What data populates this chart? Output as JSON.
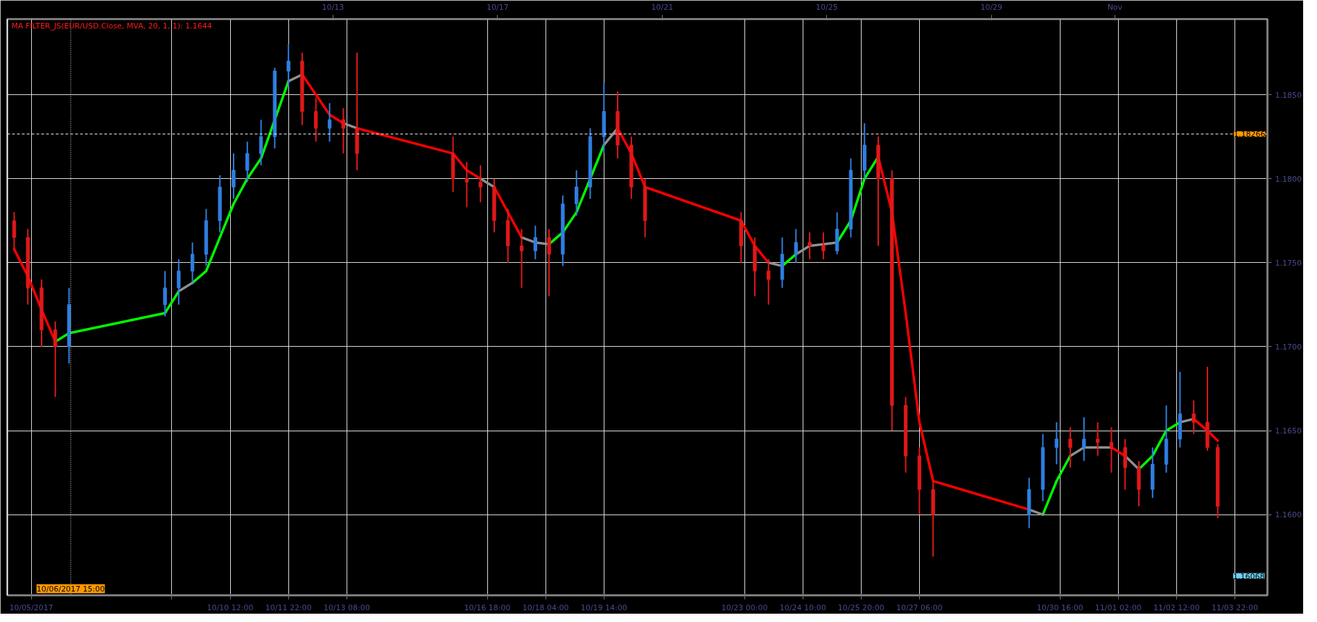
{
  "chart_data": {
    "type": "candlestick",
    "annotations": [
      "MA FILTER_JS(EUR/USD.Close, MVA, 20, 1, 1): 1.1644",
      "1.16068"
    ],
    "x": [
      "2017-10-05T06:00",
      "2017-10-05T14:00",
      "2017-10-05T22:00",
      "2017-10-06T06:00",
      "2017-10-06T14:00",
      "2017-10-08T22:00",
      "2017-10-09T06:00",
      "2017-10-09T14:00",
      "2017-10-09T22:00",
      "2017-10-10T06:00",
      "2017-10-10T14:00",
      "2017-10-10T22:00",
      "2017-10-11T06:00",
      "2017-10-11T14:00",
      "2017-10-11T22:00",
      "2017-10-12T06:00",
      "2017-10-12T14:00",
      "2017-10-12T22:00",
      "2017-10-13T06:00",
      "2017-10-13T14:00",
      "2017-10-15T22:00",
      "2017-10-16T06:00",
      "2017-10-16T14:00",
      "2017-10-16T22:00",
      "2017-10-17T06:00",
      "2017-10-17T14:00",
      "2017-10-17T22:00",
      "2017-10-18T06:00",
      "2017-10-18T14:00",
      "2017-10-18T22:00",
      "2017-10-19T06:00",
      "2017-10-19T14:00",
      "2017-10-19T22:00",
      "2017-10-20T06:00",
      "2017-10-20T14:00",
      "2017-10-22T22:00",
      "2017-10-23T06:00",
      "2017-10-23T14:00",
      "2017-10-23T22:00",
      "2017-10-24T06:00",
      "2017-10-24T14:00",
      "2017-10-24T22:00",
      "2017-10-25T06:00",
      "2017-10-25T14:00",
      "2017-10-25T22:00",
      "2017-10-26T06:00",
      "2017-10-26T14:00",
      "2017-10-26T22:00",
      "2017-10-27T06:00",
      "2017-10-27T14:00",
      "2017-10-29T22:00",
      "2017-10-30T06:00",
      "2017-10-30T14:00",
      "2017-10-30T22:00",
      "2017-10-31T06:00",
      "2017-10-31T14:00",
      "2017-10-31T22:00",
      "2017-11-01T06:00",
      "2017-11-01T14:00",
      "2017-11-01T22:00",
      "2017-11-02T06:00",
      "2017-11-02T14:00",
      "2017-11-02T22:00",
      "2017-11-03T06:00",
      "2017-11-03T12:00"
    ],
    "ohlc": [
      [
        1.1775,
        1.178,
        1.1758,
        1.1765
      ],
      [
        1.1765,
        1.177,
        1.1725,
        1.1735
      ],
      [
        1.1735,
        1.174,
        1.17,
        1.171
      ],
      [
        1.171,
        1.1715,
        1.167,
        1.17
      ],
      [
        1.17,
        1.1735,
        1.169,
        1.1725
      ],
      [
        1.1725,
        1.1745,
        1.1718,
        1.1735
      ],
      [
        1.1735,
        1.1752,
        1.1725,
        1.1745
      ],
      [
        1.1745,
        1.1762,
        1.1738,
        1.1755
      ],
      [
        1.1755,
        1.1782,
        1.1748,
        1.1775
      ],
      [
        1.1775,
        1.1802,
        1.1768,
        1.1795
      ],
      [
        1.1795,
        1.1815,
        1.1788,
        1.1805
      ],
      [
        1.1805,
        1.1822,
        1.1798,
        1.1815
      ],
      [
        1.1815,
        1.1835,
        1.1808,
        1.1825
      ],
      [
        1.1825,
        1.1866,
        1.1818,
        1.1864
      ],
      [
        1.1864,
        1.188,
        1.1855,
        1.187
      ],
      [
        1.187,
        1.1875,
        1.1832,
        1.184
      ],
      [
        1.184,
        1.1848,
        1.1822,
        1.183
      ],
      [
        1.183,
        1.1845,
        1.1822,
        1.1835
      ],
      [
        1.1835,
        1.1842,
        1.1815,
        1.183
      ],
      [
        1.183,
        1.1875,
        1.1805,
        1.1815
      ],
      [
        1.1815,
        1.1825,
        1.1792,
        1.18
      ],
      [
        1.18,
        1.181,
        1.1783,
        1.1798
      ],
      [
        1.1798,
        1.1808,
        1.1786,
        1.1795
      ],
      [
        1.1795,
        1.18,
        1.1768,
        1.1775
      ],
      [
        1.1775,
        1.1782,
        1.175,
        1.176
      ],
      [
        1.176,
        1.177,
        1.1735,
        1.1757
      ],
      [
        1.1757,
        1.1772,
        1.1752,
        1.1765
      ],
      [
        1.1765,
        1.177,
        1.173,
        1.1755
      ],
      [
        1.1755,
        1.179,
        1.1748,
        1.1785
      ],
      [
        1.1785,
        1.1805,
        1.1778,
        1.1795
      ],
      [
        1.1795,
        1.183,
        1.1788,
        1.1825
      ],
      [
        1.1825,
        1.1857,
        1.1815,
        1.184
      ],
      [
        1.184,
        1.1852,
        1.1812,
        1.182
      ],
      [
        1.182,
        1.1825,
        1.1788,
        1.1795
      ],
      [
        1.1795,
        1.18,
        1.1765,
        1.1775
      ],
      [
        1.1775,
        1.178,
        1.175,
        1.176
      ],
      [
        1.176,
        1.1765,
        1.173,
        1.1745
      ],
      [
        1.1745,
        1.1752,
        1.1725,
        1.174
      ],
      [
        1.174,
        1.1765,
        1.1735,
        1.1755
      ],
      [
        1.1755,
        1.177,
        1.175,
        1.1762
      ],
      [
        1.1762,
        1.1768,
        1.1752,
        1.176
      ],
      [
        1.176,
        1.1768,
        1.1752,
        1.1757
      ],
      [
        1.1757,
        1.178,
        1.1755,
        1.177
      ],
      [
        1.177,
        1.1812,
        1.1765,
        1.1805
      ],
      [
        1.1805,
        1.1833,
        1.18,
        1.182
      ],
      [
        1.182,
        1.1825,
        1.176,
        1.18
      ],
      [
        1.18,
        1.1805,
        1.165,
        1.1665
      ],
      [
        1.1665,
        1.167,
        1.1625,
        1.1635
      ],
      [
        1.1635,
        1.164,
        1.16,
        1.1615
      ],
      [
        1.1615,
        1.162,
        1.1575,
        1.16
      ],
      [
        1.16,
        1.1622,
        1.1592,
        1.1615
      ],
      [
        1.1615,
        1.1648,
        1.1608,
        1.164
      ],
      [
        1.164,
        1.1655,
        1.163,
        1.1645
      ],
      [
        1.1645,
        1.1652,
        1.1628,
        1.164
      ],
      [
        1.164,
        1.1658,
        1.1632,
        1.1645
      ],
      [
        1.1645,
        1.1655,
        1.1635,
        1.1643
      ],
      [
        1.1643,
        1.1652,
        1.1625,
        1.164
      ],
      [
        1.164,
        1.1645,
        1.1615,
        1.1628
      ],
      [
        1.1628,
        1.1632,
        1.1605,
        1.1615
      ],
      [
        1.1615,
        1.164,
        1.161,
        1.163
      ],
      [
        1.163,
        1.1665,
        1.1625,
        1.1645
      ],
      [
        1.1645,
        1.1685,
        1.164,
        1.166
      ],
      [
        1.166,
        1.1668,
        1.1648,
        1.1655
      ],
      [
        1.1655,
        1.1688,
        1.1638,
        1.164
      ],
      [
        1.164,
        1.1642,
        1.1598,
        1.1605
      ]
    ],
    "series": [
      {
        "type": "line",
        "color": "#ff0000",
        "x": [
          "2017-10-05T06:00",
          "2017-10-05T14:00",
          "2017-10-05T22:00",
          "2017-10-06T06:00",
          null,
          "2017-10-12T06:00",
          "2017-10-12T14:00",
          "2017-10-12T22:00",
          "2017-10-13T06:00",
          null,
          "2017-10-13T14:00",
          "2017-10-15T22:00",
          "2017-10-16T06:00",
          "2017-10-16T14:00",
          null,
          "2017-10-16T22:00",
          "2017-10-17T06:00",
          "2017-10-17T14:00",
          null,
          "2017-10-19T22:00",
          "2017-10-20T06:00",
          "2017-10-20T14:00",
          "2017-10-22T22:00",
          "2017-10-23T06:00",
          "2017-10-23T14:00",
          null,
          "2017-10-26T06:00",
          "2017-10-26T14:00",
          "2017-10-26T22:00",
          "2017-10-27T06:00",
          "2017-10-27T14:00",
          "2017-10-29T22:00",
          null,
          "2017-10-31T22:00",
          "2017-11-01T06:00",
          null,
          "2017-11-02T22:00",
          "2017-11-03T06:00",
          "2017-11-03T12:00"
        ],
        "values": [
          1.1758,
          1.1742,
          1.1722,
          1.1703,
          null,
          1.1862,
          1.185,
          1.1838,
          1.1833,
          null,
          1.183,
          1.1815,
          1.1805,
          1.18,
          null,
          1.1795,
          1.178,
          1.1765,
          null,
          1.183,
          1.1815,
          1.1795,
          1.1775,
          1.176,
          1.175,
          null,
          1.1813,
          1.178,
          1.172,
          1.1655,
          1.162,
          1.1603,
          null,
          1.164,
          1.1635,
          null,
          1.1657,
          1.165,
          1.1644
        ]
      },
      {
        "type": "line",
        "color": "#00ff00",
        "x": [
          "2017-10-06T06:00",
          "2017-10-06T14:00",
          "2017-10-08T22:00",
          "2017-10-09T06:00",
          null,
          "2017-10-09T14:00",
          "2017-10-09T22:00",
          "2017-10-10T06:00",
          "2017-10-10T14:00",
          "2017-10-10T22:00",
          "2017-10-11T06:00",
          "2017-10-11T14:00",
          "2017-10-11T22:00",
          null,
          "2017-10-18T06:00",
          "2017-10-18T14:00",
          "2017-10-18T22:00",
          "2017-10-19T06:00",
          "2017-10-19T14:00",
          null,
          "2017-10-23T22:00",
          "2017-10-24T06:00",
          null,
          "2017-10-25T06:00",
          "2017-10-25T14:00",
          "2017-10-25T22:00",
          "2017-10-26T06:00",
          null,
          "2017-10-30T06:00",
          "2017-10-30T14:00",
          "2017-10-30T22:00",
          null,
          "2017-11-01T14:00",
          "2017-11-01T22:00",
          "2017-11-02T06:00",
          "2017-11-02T14:00"
        ],
        "values": [
          1.1703,
          1.1708,
          1.172,
          1.1733,
          null,
          1.1738,
          1.1745,
          1.1765,
          1.1785,
          1.18,
          1.1812,
          1.1835,
          1.1858,
          null,
          1.1761,
          1.1768,
          1.178,
          1.18,
          1.182,
          null,
          1.1748,
          1.1755,
          null,
          1.1762,
          1.1775,
          1.18,
          1.1813,
          null,
          1.16,
          1.162,
          1.1635,
          null,
          1.1627,
          1.1635,
          1.165,
          1.1655
        ]
      },
      {
        "type": "line",
        "color": "#909090",
        "x": [
          "2017-10-09T06:00",
          "2017-10-09T14:00",
          null,
          "2017-10-11T22:00",
          "2017-10-12T06:00",
          null,
          "2017-10-13T06:00",
          "2017-10-13T14:00",
          null,
          "2017-10-16T14:00",
          "2017-10-16T22:00",
          null,
          "2017-10-17T14:00",
          "2017-10-17T22:00",
          "2017-10-18T06:00",
          null,
          "2017-10-19T14:00",
          "2017-10-19T22:00",
          null,
          "2017-10-23T14:00",
          "2017-10-23T22:00",
          null,
          "2017-10-24T06:00",
          "2017-10-24T14:00",
          "2017-10-24T22:00",
          "2017-10-25T06:00",
          null,
          "2017-10-29T22:00",
          "2017-10-30T06:00",
          null,
          "2017-10-30T22:00",
          "2017-10-31T06:00",
          "2017-10-31T14:00",
          "2017-10-31T22:00",
          null,
          "2017-11-01T06:00",
          "2017-11-01T14:00",
          null,
          "2017-11-02T14:00",
          "2017-11-02T22:00"
        ],
        "values": [
          1.1733,
          1.1738,
          null,
          1.1858,
          1.1862,
          null,
          1.1833,
          1.183,
          null,
          1.18,
          1.1795,
          null,
          1.1765,
          1.1762,
          1.1761,
          null,
          1.182,
          1.183,
          null,
          1.175,
          1.1748,
          null,
          1.1755,
          1.176,
          1.1761,
          1.1762,
          null,
          1.1603,
          1.16,
          null,
          1.1635,
          1.164,
          1.164,
          1.164,
          null,
          1.1635,
          1.1627,
          null,
          1.1655,
          1.1657
        ]
      }
    ],
    "xlim": [
      "2017-10-05T02:00",
      "2017-11-04T17:00"
    ],
    "xticks": [
      {
        "value": "2017-10-05T16:00",
        "label": "10/05/2017"
      },
      {
        "value": "2017-10-09T02:00",
        "label": null
      },
      {
        "value": "2017-10-10T12:00",
        "label": "10/10 12:00"
      },
      {
        "value": "2017-10-11T22:00",
        "label": "10/11 22:00"
      },
      {
        "value": "2017-10-13T08:00",
        "label": "10/13 08:00"
      },
      {
        "value": "2017-10-16T18:00",
        "label": "10/16 18:00"
      },
      {
        "value": "2017-10-18T04:00",
        "label": "10/18 04:00"
      },
      {
        "value": "2017-10-19T14:00",
        "label": "10/19 14:00"
      },
      {
        "value": "2017-10-23T00:00",
        "label": "10/23 00:00"
      },
      {
        "value": "2017-10-24T10:00",
        "label": "10/24 10:00"
      },
      {
        "value": "2017-10-25T20:00",
        "label": "10/25 20:00"
      },
      {
        "value": "2017-10-27T06:00",
        "label": "10/27 06:00"
      },
      {
        "value": "2017-10-30T16:00",
        "label": "10/30 16:00"
      },
      {
        "value": "2017-11-01T02:00",
        "label": "11/01 02:00"
      },
      {
        "value": "2017-11-02T12:00",
        "label": "11/02 12:00"
      },
      {
        "value": "2017-11-03T22:00",
        "label": "11/03 22:00"
      }
    ],
    "x2lim": [
      "2017-10-05T02:00",
      "2017-11-04T17:00"
    ],
    "x2ticks": [
      {
        "value": "2017-10-13",
        "label": "10/13"
      },
      {
        "value": "2017-10-17",
        "label": "10/17"
      },
      {
        "value": "2017-10-21",
        "label": "10/21"
      },
      {
        "value": "2017-10-25",
        "label": "10/25"
      },
      {
        "value": "2017-10-29",
        "label": "10/29"
      },
      {
        "value": "2017-11-01",
        "label": "Nov"
      }
    ],
    "ylim": [
      1.1552,
      1.1895
    ],
    "yticks": [
      {
        "value": 1.16,
        "label": "1.1600"
      },
      {
        "value": 1.165,
        "label": "1.1650"
      },
      {
        "value": 1.17,
        "label": "1.1700"
      },
      {
        "value": 1.175,
        "label": "1.1750"
      },
      {
        "value": 1.18,
        "label": "1.1800"
      },
      {
        "value": 1.185,
        "label": "1.1850"
      }
    ],
    "ref_lines": [
      {
        "axis": "y",
        "value": 1.18266,
        "label": "1.18266",
        "line_style": "dashed"
      },
      {
        "axis": "x",
        "value": "2017-10-06T15:00",
        "label": "10/06/2017 15:00",
        "line_style": "dotted"
      }
    ],
    "grid": true
  }
}
